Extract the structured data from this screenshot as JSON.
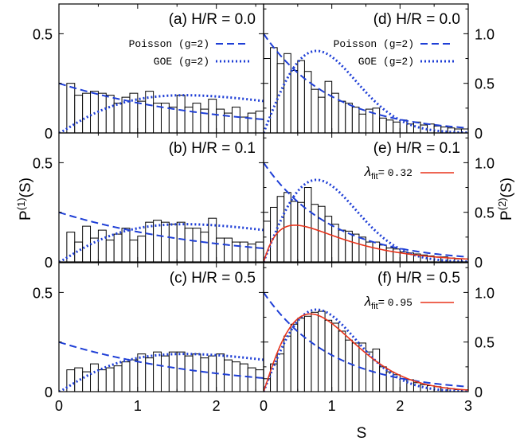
{
  "colors": {
    "poisson": "#1f3fd6",
    "goe": "#1f3fd6",
    "fit": "#e8341c",
    "bar_edge": "#000000"
  },
  "axes": {
    "xlabel": "S",
    "ylabel_left": "P(1)(S)",
    "ylabel_left_base": "P",
    "ylabel_left_sup": "(1)",
    "ylabel_left_tail": "(S)",
    "ylabel_right": "P(2)(S)",
    "ylabel_right_base": "P",
    "ylabel_right_sup": "(2)",
    "ylabel_right_tail": "(S)",
    "left_xticks": [
      "0",
      "1",
      "2"
    ],
    "right_xticks": [
      "0",
      "1",
      "2",
      "3"
    ],
    "left_yticks": [
      "0",
      "0.5"
    ],
    "right_yticks": [
      "0",
      "0.5",
      "1.0"
    ]
  },
  "legend": {
    "poisson": "Poisson (g=2)",
    "goe": "GOE (g=2)",
    "lambda_symbol": "λ",
    "lambda_sub": "fit",
    "lambda_eq": "="
  },
  "chart_data": [
    {
      "id": "a",
      "label": "(a)  H/R = 0.0",
      "type": "bar",
      "column": "left",
      "xlim": [
        0,
        2.6
      ],
      "ylim": [
        0,
        0.65
      ],
      "bin_width": 0.1,
      "bins_start": 0.1,
      "values": [
        0.25,
        0.19,
        0.2,
        0.21,
        0.2,
        0.19,
        0.15,
        0.18,
        0.2,
        0.16,
        0.21,
        0.15,
        0.15,
        0.13,
        0.19,
        0.13,
        0.15,
        0.12,
        0.17,
        0.12,
        0.1,
        0.13,
        0.08,
        0.1,
        0.11,
        0.12
      ],
      "show_legend": true,
      "fit": null
    },
    {
      "id": "b",
      "label": "(b)  H/R = 0.1",
      "type": "bar",
      "column": "left",
      "xlim": [
        0,
        2.6
      ],
      "ylim": [
        0,
        0.65
      ],
      "bin_width": 0.1,
      "bins_start": 0.1,
      "values": [
        0.15,
        0.1,
        0.18,
        0.12,
        0.16,
        0.11,
        0.14,
        0.17,
        0.11,
        0.13,
        0.2,
        0.21,
        0.2,
        0.19,
        0.2,
        0.17,
        0.17,
        0.15,
        0.22,
        0.12,
        0.12,
        0.1,
        0.1,
        0.09,
        0.1,
        0.08
      ],
      "show_legend": false,
      "fit": null
    },
    {
      "id": "c",
      "label": "(c)  H/R = 0.5",
      "type": "bar",
      "column": "left",
      "xlim": [
        0,
        2.6
      ],
      "ylim": [
        0,
        0.65
      ],
      "bin_width": 0.1,
      "bins_start": 0.1,
      "values": [
        0.11,
        0.12,
        0.1,
        0.14,
        0.11,
        0.12,
        0.13,
        0.15,
        0.16,
        0.19,
        0.17,
        0.2,
        0.18,
        0.2,
        0.2,
        0.18,
        0.19,
        0.17,
        0.18,
        0.19,
        0.16,
        0.15,
        0.14,
        0.12,
        0.11,
        0.1
      ],
      "show_legend": false,
      "fit": null
    },
    {
      "id": "d",
      "label": "(d)  H/R = 0.0",
      "type": "bar",
      "column": "right",
      "xlim": [
        0,
        3
      ],
      "ylim": [
        0,
        1.3
      ],
      "bin_width": 0.1,
      "bins_start": 0.0,
      "values": [
        0.75,
        0.86,
        0.7,
        0.8,
        0.63,
        0.73,
        0.62,
        0.44,
        0.36,
        0.52,
        0.4,
        0.32,
        0.3,
        0.26,
        0.19,
        0.24,
        0.25,
        0.15,
        0.13,
        0.11,
        0.13,
        0.09,
        0.11,
        0.08,
        0.09,
        0.07,
        0.06,
        0.05,
        0.04,
        0.04
      ],
      "show_legend": true,
      "fit": null
    },
    {
      "id": "e",
      "label": "(e)  H/R = 0.1",
      "type": "bar",
      "column": "right",
      "xlim": [
        0,
        3
      ],
      "ylim": [
        0,
        1.3
      ],
      "bin_width": 0.1,
      "bins_start": 0.0,
      "values": [
        0.41,
        0.55,
        0.66,
        0.7,
        0.61,
        0.6,
        0.75,
        0.58,
        0.56,
        0.46,
        0.38,
        0.32,
        0.31,
        0.28,
        0.25,
        0.2,
        0.2,
        0.17,
        0.14,
        0.13,
        0.1,
        0.09,
        0.08,
        0.07,
        0.06,
        0.05,
        0.05,
        0.04,
        0.03,
        0.03
      ],
      "show_legend": false,
      "fit": {
        "lambda": "0.32"
      }
    },
    {
      "id": "f",
      "label": "(f)  H/R = 0.5",
      "type": "bar",
      "column": "right",
      "xlim": [
        0,
        3
      ],
      "ylim": [
        0,
        1.3
      ],
      "bin_width": 0.1,
      "bins_start": 0.0,
      "values": [
        0.13,
        0.28,
        0.38,
        0.56,
        0.68,
        0.74,
        0.76,
        0.8,
        0.81,
        0.72,
        0.69,
        0.61,
        0.52,
        0.49,
        0.49,
        0.4,
        0.43,
        0.25,
        0.2,
        0.17,
        0.13,
        0.12,
        0.09,
        0.07,
        0.06,
        0.05,
        0.04,
        0.03,
        0.02,
        0.02
      ],
      "show_legend": false,
      "fit": {
        "lambda": "0.95"
      }
    }
  ]
}
